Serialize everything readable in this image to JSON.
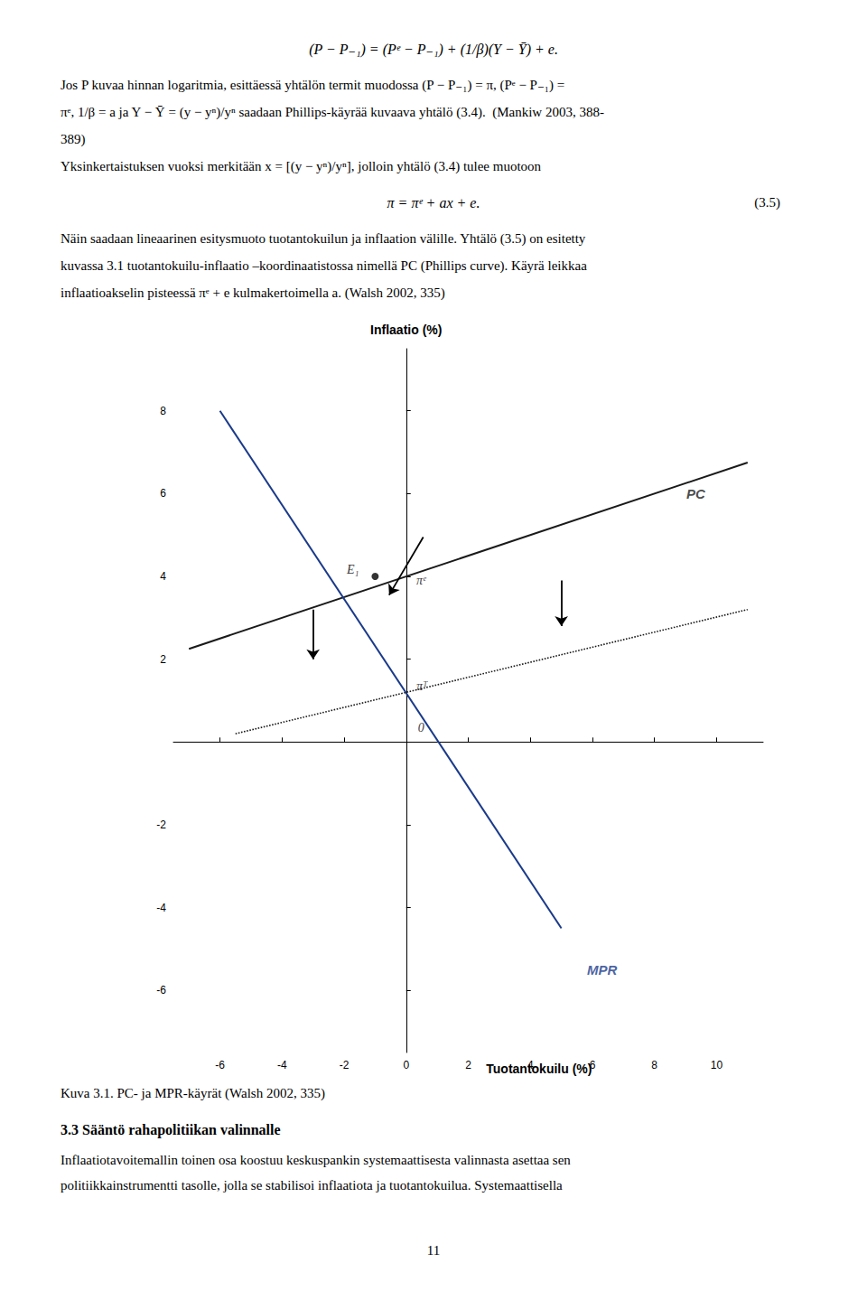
{
  "page_text": {
    "above": [
      {
        "kind": "equation",
        "text": "(P − P₋₁) = (Pᵉ − P₋₁) + (1/β)(Y − Ȳ) + e."
      },
      {
        "kind": "line",
        "text": "Jos P kuvaa hinnan logaritmia, esittäessä yhtälön termit muodossa (P − P₋₁) = π, (Pᵉ − P₋₁) ="
      },
      {
        "kind": "line",
        "text": "πᵉ, 1/β = a ja Y − Ȳ = (y − yⁿ)/yⁿ saadaan Phillips-käyrää kuvaava yhtälö (3.4).  (Mankiw 2003, 388-"
      },
      {
        "kind": "line",
        "text": "389)"
      },
      {
        "kind": "line",
        "text": "Yksinkertaistuksen vuoksi merkitään x = [(y − yⁿ)/yⁿ], jolloin yhtälö (3.4) tulee muotoon"
      },
      {
        "kind": "equation",
        "text": "π = πᵉ + ax + e.",
        "number": "(3.5)"
      },
      {
        "kind": "line",
        "text": "Näin saadaan lineaarinen esitysmuoto tuotantokuilun ja inflaation välille. Yhtälö (3.5) on esitetty"
      },
      {
        "kind": "line",
        "text": "kuvassa 3.1 tuotantokuilu-inflaatio –koordinaatistossa nimellä PC (Phillips curve). Käyrä leikkaa"
      },
      {
        "kind": "line",
        "text": "inflaatioakselin pisteessä πᵉ + e kulmakertoimella a. (Walsh 2002, 335)"
      }
    ],
    "below": [
      {
        "kind": "caption",
        "text": "Kuva 3.1. PC- ja MPR-käyrät (Walsh 2002, 335)"
      },
      {
        "kind": "heading",
        "text": "3.3 Sääntö rahapolitiikan valinnalle"
      },
      {
        "kind": "line",
        "text": "Inflaatiotavoitemallin toinen osa koostuu keskuspankin systemaattisesta valinnasta asettaa sen"
      },
      {
        "kind": "line",
        "text": "politiikkainstrumentti tasolle, jolla se stabilisoi inflaatiota ja tuotantokuilua. Systemaattisella"
      },
      {
        "kind": "page_number",
        "text": "11"
      }
    ]
  },
  "chart_data": {
    "type": "line",
    "title": "Inflaatio (%)",
    "x_label": "Tuotantokuilu (%)",
    "xlim": [
      -7.5,
      11.5
    ],
    "ylim": [
      -7.5,
      9.5
    ],
    "xticks": [
      -6,
      -4,
      -2,
      0,
      2,
      4,
      6,
      8,
      10
    ],
    "yticks": [
      -6,
      -4,
      -2,
      2,
      4,
      6,
      8
    ],
    "grid": false,
    "series": [
      {
        "type": "line",
        "color": "#1a1a1a",
        "line_style": "solid",
        "x": [
          -7,
          11
        ],
        "values": [
          2.25,
          6.75
        ]
      },
      {
        "type": "line",
        "color": "#1a3a8a",
        "line_style": "solid",
        "x": [
          -6.0,
          5.0
        ],
        "values": [
          8.0,
          -4.5
        ]
      },
      {
        "type": "line",
        "color": "#1a1a1a",
        "line_style": "dotted",
        "x": [
          -5.5,
          11
        ],
        "values": [
          0.2,
          3.2
        ]
      },
      {
        "type": "scatter",
        "color": "#000000",
        "marker": "circle",
        "x": [
          -1.0
        ],
        "values": [
          4.0
        ],
        "labels": [
          "E₁"
        ]
      }
    ],
    "annotations": [
      {
        "text": "PC",
        "x": 9.0,
        "y": 6.0,
        "color": "#1a1a1a"
      },
      {
        "text": "MPR",
        "x": 5.8,
        "y": -5.5,
        "color": "#1a3a8a"
      },
      {
        "text": "πᵉ",
        "x": 0.3,
        "y": 3.9
      },
      {
        "text": "πᵀ",
        "x": 0.3,
        "y": 1.35
      },
      {
        "text": "0",
        "x": 0.35,
        "y": 0.35
      }
    ],
    "arrows": [
      {
        "from": [
          -3.0,
          3.2
        ],
        "to": [
          -3.0,
          2.0
        ]
      },
      {
        "from": [
          5.0,
          3.9
        ],
        "to": [
          5.0,
          2.8
        ]
      },
      {
        "from": [
          0.55,
          4.95
        ],
        "to": [
          -0.55,
          3.55
        ]
      }
    ]
  }
}
